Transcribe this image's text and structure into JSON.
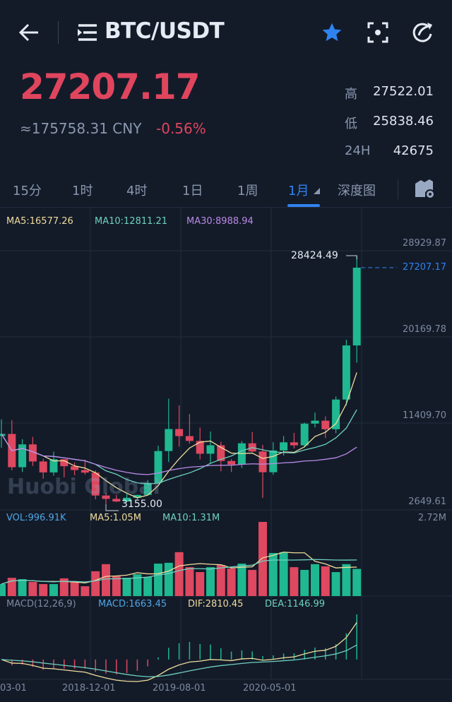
{
  "header": {
    "title": "BTC/USDT",
    "icons": [
      "back-arrow-icon",
      "menu-list-icon",
      "star-icon",
      "screenshot-icon",
      "share-icon"
    ]
  },
  "ticker": {
    "last": "27207.17",
    "cny": "≈175758.31 CNY",
    "change": "-0.56%",
    "high_label": "高",
    "high": "27522.01",
    "low_label": "低",
    "low": "25838.46",
    "vol_label": "24H",
    "vol": "42675"
  },
  "tabs": [
    {
      "label": "15分"
    },
    {
      "label": "1时"
    },
    {
      "label": "4时"
    },
    {
      "label": "1日"
    },
    {
      "label": "1周"
    },
    {
      "label": "1月",
      "active": true
    },
    {
      "label": "深度图"
    }
  ],
  "colors": {
    "up": "#1fb890",
    "down": "#de4860",
    "accent": "#2f83ef",
    "ma5": "#f0dc9c",
    "ma10": "#6fd1c0",
    "ma30": "#bb8ae6"
  },
  "indicators": {
    "ma5": "MA5:16577.26",
    "ma10": "MA10:12811.21",
    "ma30": "MA30:8988.94",
    "vol": "VOL:996.91K",
    "vol_ma5": "MA5:1.05M",
    "vol_ma10": "MA10:1.31M",
    "macd_title": "MACD(12,26,9)",
    "macd": "MACD:1663.45",
    "dif": "DIF:2810.45",
    "dea": "DEA:1146.99"
  },
  "price_axis": [
    "28929.87",
    "20169.78",
    "11409.70",
    "2649.61"
  ],
  "vol_axis": "2.72M",
  "high_marker": "28424.49",
  "low_marker": "3155.00",
  "last_marker": "27207.17",
  "watermark": "Huobi Global",
  "date_axis": [
    "03-01",
    "2018-12-01",
    "2019-08-01",
    "2020-05-01"
  ],
  "chart_data": {
    "type": "candlestick",
    "ylim": [
      2649.61,
      28929.87
    ],
    "dates": [
      "2018-02",
      "2018-03",
      "2018-04",
      "2018-05",
      "2018-06",
      "2018-07",
      "2018-08",
      "2018-09",
      "2018-10",
      "2018-11",
      "2018-12",
      "2019-01",
      "2019-02",
      "2019-03",
      "2019-04",
      "2019-05",
      "2019-06",
      "2019-07",
      "2019-08",
      "2019-09",
      "2019-10",
      "2019-11",
      "2019-12",
      "2020-01",
      "2020-02",
      "2020-03",
      "2020-04",
      "2020-05",
      "2020-06",
      "2020-07",
      "2020-08",
      "2020-09",
      "2020-10",
      "2020-11",
      "2020-12"
    ],
    "ohlc": [
      [
        10100,
        11780,
        8900,
        10300
      ],
      [
        10300,
        11700,
        6600,
        6920
      ],
      [
        6920,
        9770,
        6430,
        9240
      ],
      [
        9240,
        10000,
        7040,
        7500
      ],
      [
        7500,
        7770,
        5750,
        6390
      ],
      [
        6390,
        8500,
        6070,
        7730
      ],
      [
        7730,
        7760,
        5880,
        7020
      ],
      [
        7020,
        7400,
        6100,
        6630
      ],
      [
        6630,
        7680,
        6170,
        6370
      ],
      [
        6370,
        6590,
        3650,
        4040
      ],
      [
        4040,
        4310,
        3155,
        3700
      ],
      [
        3700,
        4100,
        3380,
        3430
      ],
      [
        3430,
        4200,
        3350,
        3810
      ],
      [
        3810,
        4130,
        3660,
        4100
      ],
      [
        4100,
        5620,
        4070,
        5320
      ],
      [
        5320,
        9100,
        5320,
        8560
      ],
      [
        8560,
        13880,
        7440,
        10800
      ],
      [
        10800,
        13200,
        9010,
        10080
      ],
      [
        10080,
        12320,
        9320,
        9590
      ],
      [
        9590,
        10950,
        7710,
        8290
      ],
      [
        8290,
        10540,
        7300,
        9150
      ],
      [
        9150,
        9510,
        6500,
        7550
      ],
      [
        7550,
        7740,
        6430,
        7190
      ],
      [
        7190,
        9580,
        6850,
        9350
      ],
      [
        9350,
        10500,
        8450,
        8520
      ],
      [
        8520,
        9190,
        3800,
        6410
      ],
      [
        6410,
        9460,
        6150,
        8620
      ],
      [
        8620,
        10080,
        8110,
        9450
      ],
      [
        9450,
        10400,
        8830,
        9140
      ],
      [
        9140,
        11450,
        8920,
        11350
      ],
      [
        11350,
        12480,
        10960,
        11650
      ],
      [
        11650,
        12080,
        9880,
        10780
      ],
      [
        10780,
        14100,
        10370,
        13800
      ],
      [
        13800,
        19880,
        13200,
        19300
      ],
      [
        19300,
        28424.49,
        17560,
        27207.17
      ]
    ],
    "volume_M": [
      0.44,
      0.67,
      0.62,
      0.52,
      0.44,
      0.44,
      0.65,
      0.52,
      0.36,
      0.91,
      1.17,
      0.73,
      0.67,
      0.8,
      0.7,
      1.19,
      1.22,
      1.61,
      1.06,
      0.88,
      1.06,
      1.14,
      1.01,
      1.19,
      0.96,
      2.72,
      1.58,
      1.61,
      1.06,
      0.96,
      1.17,
      1.09,
      0.88,
      1.17,
      0.997
    ],
    "vol_ylim": [
      0,
      2.72
    ]
  }
}
